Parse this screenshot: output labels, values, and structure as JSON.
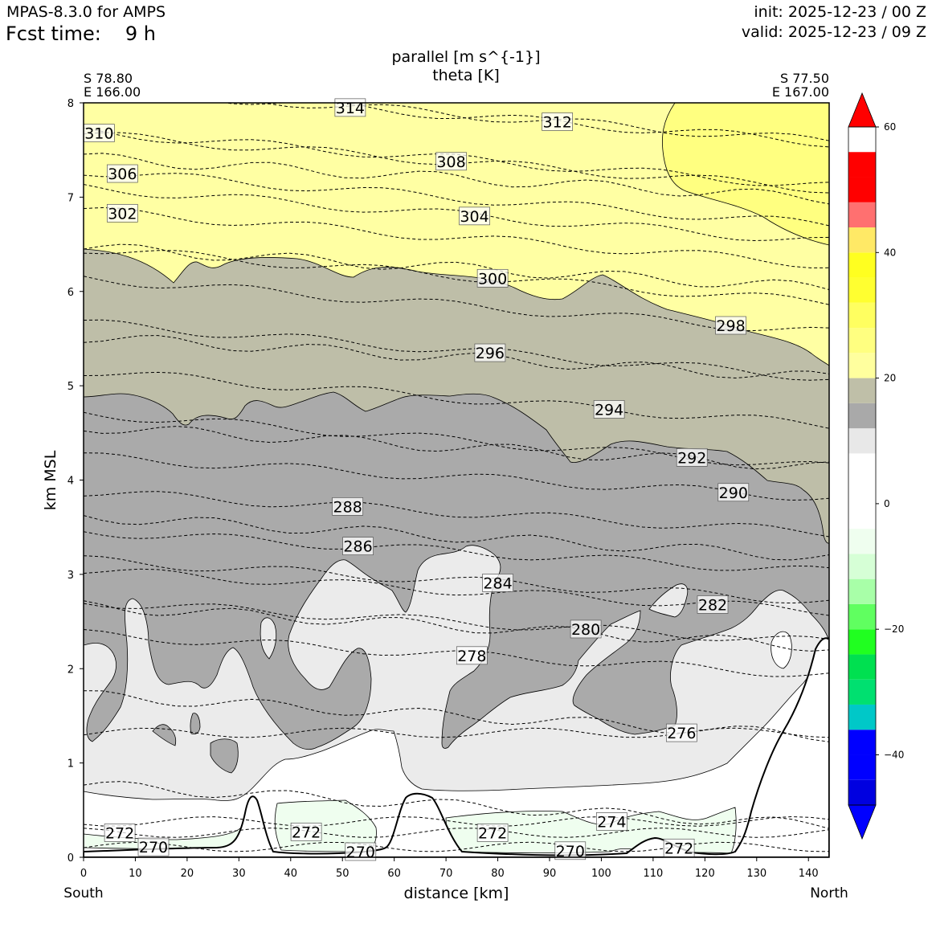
{
  "header": {
    "app_title": "MPAS-8.3.0 for AMPS",
    "fcst_label": "Fcst time:",
    "fcst_value": "9 h",
    "init": "init: 2025-12-23 / 00 Z",
    "valid": "valid: 2025-12-23 / 09 Z"
  },
  "chart_data": {
    "type": "cross-section",
    "title": "parallel [m s^{-1}]",
    "subtitle": "theta [K]",
    "xlabel": "distance [km]",
    "ylabel": "km MSL",
    "xlim": [
      0,
      144
    ],
    "ylim": [
      0,
      8
    ],
    "xticks": [
      0,
      10,
      20,
      30,
      40,
      50,
      60,
      70,
      80,
      90,
      100,
      110,
      120,
      130,
      140
    ],
    "yticks": [
      0,
      1,
      2,
      3,
      4,
      5,
      6,
      7,
      8
    ],
    "left_end": {
      "lat": "S 78.80",
      "lon": "E 166.00",
      "direction": "South"
    },
    "right_end": {
      "lat": "S 77.50",
      "lon": "E 167.00",
      "direction": "North"
    },
    "filled_field": "parallel wind speed",
    "contour_field": "theta",
    "colorbar": {
      "levels": [
        -48,
        -44,
        -40,
        -36,
        -32,
        -28,
        -24,
        -20,
        -16,
        -12,
        -8,
        -4,
        0,
        4,
        8,
        12,
        16,
        20,
        24,
        28,
        32,
        36,
        40,
        44,
        48,
        52,
        56,
        60
      ],
      "colors": [
        "#0000e0",
        "#0000ff",
        "#0000ff",
        "#00c8c8",
        "#00e070",
        "#00e050",
        "#20ff20",
        "#60ff60",
        "#a8ffa8",
        "#d6ffd6",
        "#effeef",
        "#ffffff",
        "#ffffff",
        "#ffffff",
        "#e8e8e8",
        "#a9a9a9",
        "#bfbfa8",
        "#ffff9e",
        "#ffff80",
        "#ffff60",
        "#ffff30",
        "#ffff20",
        "#ffe966",
        "#ff7070",
        "#ff0000",
        "#ff0000"
      ],
      "tick_labels": [
        "60",
        "40",
        "20",
        "0",
        "−20",
        "−40"
      ],
      "tick_values": [
        60,
        40,
        20,
        0,
        -20,
        -40
      ],
      "vmin": -48,
      "vmax": 60
    },
    "theta_labels": [
      {
        "text": "314",
        "x": 51.5,
        "y": 7.95
      },
      {
        "text": "312",
        "x": 91.5,
        "y": 7.8
      },
      {
        "text": "310",
        "x": 3,
        "y": 7.68
      },
      {
        "text": "308",
        "x": 71,
        "y": 7.38
      },
      {
        "text": "306",
        "x": 7.5,
        "y": 7.25
      },
      {
        "text": "304",
        "x": 75.5,
        "y": 6.8
      },
      {
        "text": "302",
        "x": 7.5,
        "y": 6.83
      },
      {
        "text": "300",
        "x": 79,
        "y": 6.14
      },
      {
        "text": "298",
        "x": 125,
        "y": 5.64
      },
      {
        "text": "296",
        "x": 78.5,
        "y": 5.35
      },
      {
        "text": "294",
        "x": 101.5,
        "y": 4.75
      },
      {
        "text": "292",
        "x": 117.5,
        "y": 4.24
      },
      {
        "text": "290",
        "x": 125.5,
        "y": 3.87
      },
      {
        "text": "288",
        "x": 51,
        "y": 3.72
      },
      {
        "text": "286",
        "x": 53,
        "y": 3.3
      },
      {
        "text": "284",
        "x": 80,
        "y": 2.91
      },
      {
        "text": "282",
        "x": 121.5,
        "y": 2.68
      },
      {
        "text": "280",
        "x": 97,
        "y": 2.42
      },
      {
        "text": "278",
        "x": 75,
        "y": 2.14
      },
      {
        "text": "276",
        "x": 115.5,
        "y": 1.32
      },
      {
        "text": "274",
        "x": 102,
        "y": 0.38
      },
      {
        "text": "272",
        "x": 7,
        "y": 0.26
      },
      {
        "text": "272",
        "x": 43,
        "y": 0.27
      },
      {
        "text": "272",
        "x": 79,
        "y": 0.26
      },
      {
        "text": "272",
        "x": 115,
        "y": 0.1
      },
      {
        "text": "270",
        "x": 13.5,
        "y": 0.11
      },
      {
        "text": "270",
        "x": 53.5,
        "y": 0.06
      },
      {
        "text": "270",
        "x": 94,
        "y": 0.07
      }
    ]
  }
}
